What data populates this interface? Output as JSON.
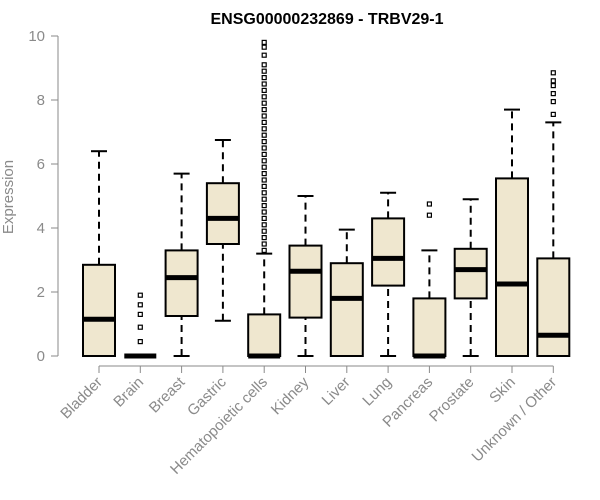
{
  "chart_data": {
    "type": "box",
    "title": "ENSG00000232869 - TRBV29-1",
    "xlabel": "",
    "ylabel": "Expression",
    "ylim": [
      0,
      10
    ],
    "yticks": [
      0,
      2,
      4,
      6,
      8,
      10
    ],
    "box_fill": "#efe7cf",
    "box_stroke": "#000000",
    "axis_color": "#8a8a8a",
    "groups": [
      {
        "name": "Bladder",
        "min": 0,
        "q1": 0,
        "median": 1.15,
        "q3": 2.85,
        "max": 6.4,
        "outliers": []
      },
      {
        "name": "Brain",
        "min": 0,
        "q1": 0,
        "median": 0,
        "q3": 0,
        "max": 0,
        "outliers": [
          0.45,
          0.9,
          1.3,
          1.6,
          1.9
        ]
      },
      {
        "name": "Breast",
        "min": 0,
        "q1": 1.25,
        "median": 2.45,
        "q3": 3.3,
        "max": 5.7,
        "outliers": []
      },
      {
        "name": "Gastric",
        "min": 1.1,
        "q1": 3.5,
        "median": 4.3,
        "q3": 5.4,
        "max": 6.75,
        "outliers": []
      },
      {
        "name": "Hematopoietic cells",
        "min": 0,
        "q1": 0,
        "median": 0,
        "q3": 1.3,
        "max": 3.2,
        "outliers": [
          3.3,
          3.5,
          3.7,
          3.9,
          4.1,
          4.3,
          4.5,
          4.7,
          4.9,
          5.1,
          5.3,
          5.5,
          5.7,
          5.9,
          6.1,
          6.3,
          6.5,
          6.7,
          6.9,
          7.1,
          7.3,
          7.5,
          7.7,
          7.9,
          8.1,
          8.3,
          8.5,
          8.7,
          8.9,
          9.1,
          9.4,
          9.65,
          9.8
        ]
      },
      {
        "name": "Kidney",
        "min": 0,
        "q1": 1.2,
        "median": 2.65,
        "q3": 3.45,
        "max": 5.0,
        "outliers": []
      },
      {
        "name": "Liver",
        "min": 0,
        "q1": 0,
        "median": 1.8,
        "q3": 2.9,
        "max": 3.95,
        "outliers": []
      },
      {
        "name": "Lung",
        "min": 0,
        "q1": 2.2,
        "median": 3.05,
        "q3": 4.3,
        "max": 5.1,
        "outliers": []
      },
      {
        "name": "Pancreas",
        "min": 0,
        "q1": 0,
        "median": 0,
        "q3": 1.8,
        "max": 3.3,
        "outliers": [
          4.4,
          4.75
        ]
      },
      {
        "name": "Prostate",
        "min": 0,
        "q1": 1.8,
        "median": 2.7,
        "q3": 3.35,
        "max": 4.9,
        "outliers": []
      },
      {
        "name": "Skin",
        "min": 0,
        "q1": 0,
        "median": 2.25,
        "q3": 5.55,
        "max": 7.7,
        "outliers": []
      },
      {
        "name": "Unknown / Other",
        "min": 0,
        "q1": 0,
        "median": 0.65,
        "q3": 3.05,
        "max": 7.3,
        "outliers": [
          7.55,
          7.95,
          8.2,
          8.45,
          8.6,
          8.85
        ]
      }
    ]
  }
}
